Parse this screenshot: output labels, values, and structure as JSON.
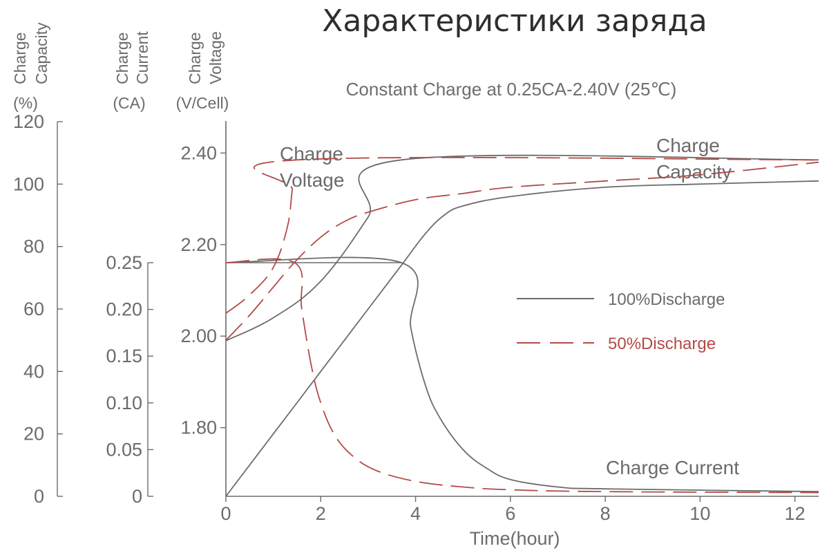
{
  "chart_data": {
    "type": "line",
    "title": "Характеристики заряда",
    "subtitle": "Constant Charge at 0.25CA-2.40V  (25℃)",
    "xlabel": "Time(hour)",
    "xlim": [
      0,
      12.5
    ],
    "x_ticks": [
      "0",
      "2",
      "4",
      "6",
      "8",
      "10",
      "12"
    ],
    "axes": {
      "capacity": {
        "label_lines": [
          "Charge",
          "Capacity"
        ],
        "unit": "(%)",
        "ylim": [
          0,
          120
        ],
        "ticks": [
          "0",
          "20",
          "40",
          "60",
          "80",
          "100",
          "120"
        ]
      },
      "current": {
        "label_lines": [
          "Charge",
          "Current"
        ],
        "unit": "(CA)",
        "ylim": [
          0,
          0.25
        ],
        "ticks": [
          "0",
          "0.05",
          "0.10",
          "0.15",
          "0.20",
          "0.25"
        ]
      },
      "voltage": {
        "label_lines": [
          "Charge",
          "Voltage"
        ],
        "unit": "(V/Cell)",
        "ylim": [
          1.65,
          2.47
        ],
        "ticks": [
          "1.80",
          "2.00",
          "2.20",
          "2.40"
        ]
      }
    },
    "annotations": {
      "voltage": [
        "Charge",
        "Voltage"
      ],
      "capacity": [
        "Charge",
        "Capacity"
      ],
      "current": "Charge Current"
    },
    "legend": {
      "position": "right",
      "items": [
        {
          "label": "100%Discharge",
          "color": "#6b6b6b",
          "style": "solid"
        },
        {
          "label": "50%Discharge",
          "color": "#b34a45",
          "style": "dashed"
        }
      ]
    },
    "series": [
      {
        "group": "100%Discharge",
        "measure": "voltage",
        "axis": "voltage",
        "x": [
          0,
          1,
          2,
          3,
          3.7,
          12.5
        ],
        "y": [
          1.99,
          2.04,
          2.12,
          2.26,
          2.385,
          2.385
        ]
      },
      {
        "group": "100%Discharge",
        "measure": "capacity",
        "axis": "capacity",
        "x": [
          0,
          1,
          2,
          3,
          3.7,
          4.2,
          4.6,
          5,
          6,
          8,
          10,
          12.5
        ],
        "y": [
          0,
          20,
          40,
          60,
          74,
          84,
          90,
          93,
          96,
          99,
          100,
          101
        ]
      },
      {
        "group": "100%Discharge",
        "measure": "current",
        "axis": "current",
        "x": [
          0,
          3.7,
          3.9,
          4.2,
          4.5,
          5,
          5.5,
          6,
          7,
          8,
          12.5
        ],
        "y": [
          0.25,
          0.25,
          0.18,
          0.12,
          0.085,
          0.05,
          0.03,
          0.018,
          0.01,
          0.008,
          0.005
        ]
      },
      {
        "group": "50%Discharge",
        "measure": "voltage",
        "axis": "voltage",
        "x": [
          0,
          0.5,
          1,
          1.3,
          1.4,
          1.5,
          12.5
        ],
        "y": [
          2.05,
          2.09,
          2.15,
          2.24,
          2.32,
          2.385,
          2.385
        ]
      },
      {
        "group": "50%Discharge",
        "measure": "capacity",
        "axis": "capacity",
        "x": [
          0,
          0.5,
          1,
          1.45,
          2,
          2.5,
          3,
          4,
          5,
          6,
          8,
          10,
          12.5
        ],
        "y": [
          50,
          58,
          67,
          75,
          83,
          88,
          91,
          95,
          97,
          99,
          101,
          103,
          107
        ]
      },
      {
        "group": "50%Discharge",
        "measure": "current",
        "axis": "current",
        "x": [
          0,
          1.45,
          1.6,
          1.8,
          2,
          2.3,
          2.7,
          3.2,
          4,
          5,
          6,
          8,
          12.5
        ],
        "y": [
          0.25,
          0.25,
          0.2,
          0.14,
          0.1,
          0.065,
          0.042,
          0.027,
          0.016,
          0.01,
          0.007,
          0.005,
          0.004
        ]
      }
    ],
    "grid": false,
    "colors": {
      "axis": "#6b6b6b",
      "solid": "#6b6b6b",
      "dashed": "#b34a45",
      "title": "#2e2e2e"
    }
  }
}
